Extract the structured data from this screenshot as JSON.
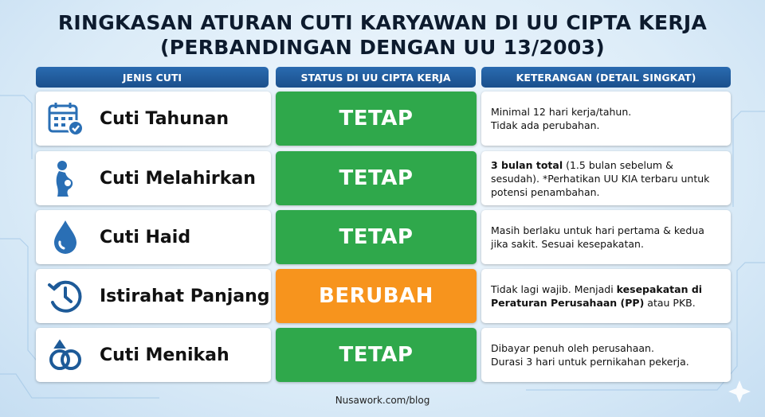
{
  "title_line1": "RINGKASAN ATURAN CUTI KARYAWAN DI UU CIPTA KERJA",
  "title_line2": "(PERBANDINGAN DENGAN UU 13/2003)",
  "headers": [
    "JENIS CUTI",
    "STATUS DI UU CIPTA KERJA",
    "KETERANGAN (DETAIL SINGKAT)"
  ],
  "colors": {
    "header": "#1f5b9c",
    "tetap": "#2fa84b",
    "berubah": "#f7941d",
    "icon": "#2a6fb5"
  },
  "rows": [
    {
      "icon": "calendar-check-icon",
      "name": "Cuti Tahunan",
      "status": "TETAP",
      "status_type": "tetap",
      "detail": [
        {
          "text": "Minimal 12 hari kerja/tahun.",
          "bold": false
        },
        {
          "text": "Tidak ada perubahan.",
          "bold": false,
          "newline": true
        }
      ]
    },
    {
      "icon": "pregnant-woman-icon",
      "name": "Cuti Melahirkan",
      "status": "TETAP",
      "status_type": "tetap",
      "detail": [
        {
          "text": "3 bulan total",
          "bold": true
        },
        {
          "text": " (1.5 bulan sebelum & sesudah). *Perhatikan UU KIA terbaru untuk potensi penambahan.",
          "bold": false
        }
      ]
    },
    {
      "icon": "water-drop-icon",
      "name": "Cuti Haid",
      "status": "TETAP",
      "status_type": "tetap",
      "detail": [
        {
          "text": "Masih berlaku untuk hari pertama & kedua jika sakit. Sesuai kesepakatan.",
          "bold": false
        }
      ]
    },
    {
      "icon": "clock-history-icon",
      "name": "Istirahat Panjang",
      "status": "BERUBAH",
      "status_type": "berubah",
      "detail": [
        {
          "text": "Tidak lagi wajib. Menjadi ",
          "bold": false
        },
        {
          "text": "kesepakatan di Peraturan Perusahaan (PP)",
          "bold": true
        },
        {
          "text": " atau PKB.",
          "bold": false
        }
      ]
    },
    {
      "icon": "wedding-rings-icon",
      "name": "Cuti Menikah",
      "status": "TETAP",
      "status_type": "tetap",
      "detail": [
        {
          "text": "Dibayar penuh oleh perusahaan.",
          "bold": false
        },
        {
          "text": "Durasi 3 hari untuk pernikahan pekerja.",
          "bold": false,
          "newline": true
        }
      ]
    }
  ],
  "footer": "Nusawork.com/blog"
}
